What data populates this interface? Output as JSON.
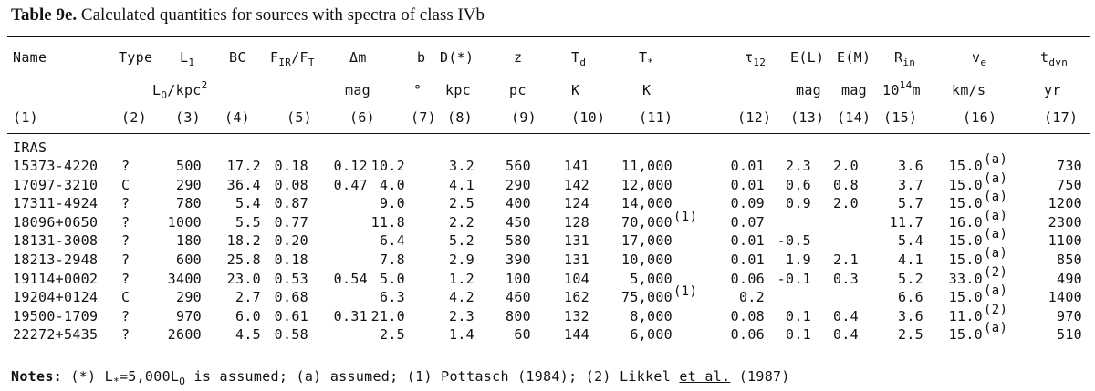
{
  "table": {
    "label": "Table 9e.",
    "caption": "Calculated quantities for sources with spectra of class IVb",
    "group_label": "IRAS",
    "headers": {
      "name": "Name",
      "type": "Type",
      "L_main": "L",
      "L_sub": "1",
      "L_unit_main": "L",
      "L_unit_sub": "O",
      "L_unit_rest": "/kpc",
      "L_unit_sup": "2",
      "BC": "BC",
      "FIR_F": "F",
      "FIR_sub1": "IR",
      "FIR_slash": "/F",
      "FIR_sub2": "T",
      "dm": "Δm",
      "dm_unit": "mag",
      "b": "b",
      "b_unit": "°",
      "D": "D(*)",
      "D_unit": "kpc",
      "z": "z",
      "z_unit": "pc",
      "Td_main": "T",
      "Td_sub": "d",
      "Td_unit": "K",
      "Tstar_main": "T",
      "Tstar_sub": "*",
      "Tstar_unit": "K",
      "tau_main": "τ",
      "tau_sub": "12",
      "EL": "E(L)",
      "EL_unit": "mag",
      "EM": "E(M)",
      "EM_unit": "mag",
      "Rin_main": "R",
      "Rin_sub": "in",
      "Rin_unit_main": "10",
      "Rin_unit_sup": "14",
      "Rin_unit_rest": "m",
      "ve_main": "v",
      "ve_sub": "e",
      "ve_unit": "km/s",
      "tdyn_main": "t",
      "tdyn_sub": "dyn",
      "tdyn_unit": "yr"
    },
    "column_numbers": [
      "(1)",
      "(2)",
      "(3)",
      "(4)",
      "(5)",
      "(6)",
      "(7)",
      "(8)",
      "(9)",
      "(10)",
      "(11)",
      "(12)",
      "(13)",
      "(14)",
      "(15)",
      "(16)",
      "(17)"
    ],
    "rows": [
      {
        "name": "15373-4220",
        "type": "?",
        "L": "500",
        "BC": "17.2",
        "FIR": "0.18",
        "dm": "0.12",
        "b": "10.2",
        "D": "3.2",
        "z": "560",
        "Td": "141",
        "Tstar": "11,000",
        "Tstar_note": "",
        "tau": "0.01",
        "EL": "2.3",
        "EM": "2.0",
        "Rin": "3.6",
        "ve": "15.0",
        "ve_note": "(a)",
        "tdyn": "730"
      },
      {
        "name": "17097-3210",
        "type": "C",
        "L": "290",
        "BC": "36.4",
        "FIR": "0.08",
        "dm": "0.47",
        "b": "4.0",
        "D": "4.1",
        "z": "290",
        "Td": "142",
        "Tstar": "12,000",
        "Tstar_note": "",
        "tau": "0.01",
        "EL": "0.6",
        "EM": "0.8",
        "Rin": "3.7",
        "ve": "15.0",
        "ve_note": "(a)",
        "tdyn": "750"
      },
      {
        "name": "17311-4924",
        "type": "?",
        "L": "780",
        "BC": "5.4",
        "FIR": "0.87",
        "dm": "",
        "b": "9.0",
        "D": "2.5",
        "z": "400",
        "Td": "124",
        "Tstar": "14,000",
        "Tstar_note": "",
        "tau": "0.09",
        "EL": "0.9",
        "EM": "2.0",
        "Rin": "5.7",
        "ve": "15.0",
        "ve_note": "(a)",
        "tdyn": "1200"
      },
      {
        "name": "18096+0650",
        "type": "?",
        "L": "1000",
        "BC": "5.5",
        "FIR": "0.77",
        "dm": "",
        "b": "11.8",
        "D": "2.2",
        "z": "450",
        "Td": "128",
        "Tstar": "70,000",
        "Tstar_note": "(1)",
        "tau": "0.07",
        "EL": "",
        "EM": "",
        "Rin": "11.7",
        "ve": "16.0",
        "ve_note": "(a)",
        "tdyn": "2300"
      },
      {
        "name": "18131-3008",
        "type": "?",
        "L": "180",
        "BC": "18.2",
        "FIR": "0.20",
        "dm": "",
        "b": "6.4",
        "D": "5.2",
        "z": "580",
        "Td": "131",
        "Tstar": "17,000",
        "Tstar_note": "",
        "tau": "0.01",
        "EL": "-0.5",
        "EM": "",
        "Rin": "5.4",
        "ve": "15.0",
        "ve_note": "(a)",
        "tdyn": "1100"
      },
      {
        "name": "18213-2948",
        "type": "?",
        "L": "600",
        "BC": "25.8",
        "FIR": "0.18",
        "dm": "",
        "b": "7.8",
        "D": "2.9",
        "z": "390",
        "Td": "131",
        "Tstar": "10,000",
        "Tstar_note": "",
        "tau": "0.01",
        "EL": "1.9",
        "EM": "2.1",
        "Rin": "4.1",
        "ve": "15.0",
        "ve_note": "(a)",
        "tdyn": "850"
      },
      {
        "name": "19114+0002",
        "type": "?",
        "L": "3400",
        "BC": "23.0",
        "FIR": "0.53",
        "dm": "0.54",
        "b": "5.0",
        "D": "1.2",
        "z": "100",
        "Td": "104",
        "Tstar": "5,000",
        "Tstar_note": "",
        "tau": "0.06",
        "EL": "-0.1",
        "EM": "0.3",
        "Rin": "5.2",
        "ve": "33.0",
        "ve_note": "(2)",
        "tdyn": "490"
      },
      {
        "name": "19204+0124",
        "type": "C",
        "L": "290",
        "BC": "2.7",
        "FIR": "0.68",
        "dm": "",
        "b": "6.3",
        "D": "4.2",
        "z": "460",
        "Td": "162",
        "Tstar": "75,000",
        "Tstar_note": "(1)",
        "tau": "0.2",
        "EL": "",
        "EM": "",
        "Rin": "6.6",
        "ve": "15.0",
        "ve_note": "(a)",
        "tdyn": "1400"
      },
      {
        "name": "19500-1709",
        "type": "?",
        "L": "970",
        "BC": "6.0",
        "FIR": "0.61",
        "dm": "0.31",
        "b": "21.0",
        "D": "2.3",
        "z": "800",
        "Td": "132",
        "Tstar": "8,000",
        "Tstar_note": "",
        "tau": "0.08",
        "EL": "0.1",
        "EM": "0.4",
        "Rin": "3.6",
        "ve": "11.0",
        "ve_note": "(2)",
        "tdyn": "970"
      },
      {
        "name": "22272+5435",
        "type": "?",
        "L": "2600",
        "BC": "4.5",
        "FIR": "0.58",
        "dm": "",
        "b": "2.5",
        "D": "1.4",
        "z": "60",
        "Td": "144",
        "Tstar": "6,000",
        "Tstar_note": "",
        "tau": "0.06",
        "EL": "0.1",
        "EM": "0.4",
        "Rin": "2.5",
        "ve": "15.0",
        "ve_note": "(a)",
        "tdyn": "510"
      }
    ],
    "notes": {
      "label": "Notes:",
      "part1": " (*) L",
      "part1_sub": "*",
      "part2": "=5,000L",
      "part2_sub": "O",
      "part3": " is assumed; (a) assumed; (1) Pottasch (1984); (2) Likkel ",
      "etal": "et al.",
      "part4": " (1987)"
    }
  }
}
